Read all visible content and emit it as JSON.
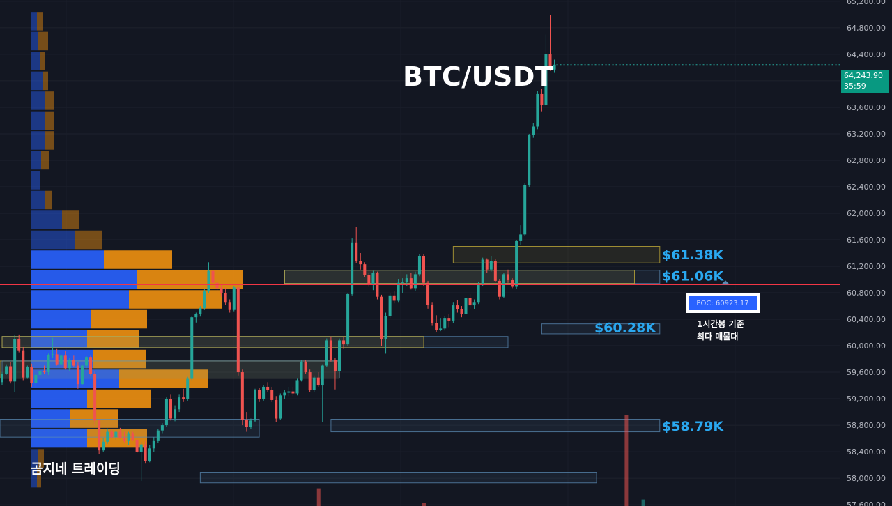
{
  "title": "BTC/USDT",
  "watermark": "곰지네 트레이딩",
  "price_badge": {
    "price": "64,243.90",
    "countdown": "35:59"
  },
  "poc": {
    "label": "POC: 60923.17",
    "value": 60923.17,
    "note_line1": "1시간봉 기준",
    "note_line2": "최다 매물대"
  },
  "colors": {
    "background": "#131722",
    "up": "#26a69a",
    "down": "#ef5350",
    "profile_buy": "#2962ff",
    "profile_sell": "#f0900f",
    "poc_line": "#f23645",
    "zone_yellow": "#c9b33a",
    "zone_blue": "#5b8bb5",
    "accent_label": "#2aa8f0"
  },
  "chart_data": {
    "type": "candlestick",
    "title": "BTC/USDT",
    "timeframe_note": "1시간봉",
    "y_axis": {
      "ticks": [
        "65,200.00",
        "64,800.00",
        "64,400.00",
        "64,000.00",
        "63,600.00",
        "63,200.00",
        "62,800.00",
        "62,400.00",
        "62,000.00",
        "61,600.00",
        "61,200.00",
        "60,800.00",
        "60,400.00",
        "60,000.00",
        "59,600.00",
        "59,200.00",
        "58,800.00",
        "58,400.00",
        "58,000.00",
        "57,600.00"
      ],
      "range": [
        57580,
        65220
      ],
      "grid": true
    },
    "current_price": 64243.9,
    "level_labels": [
      {
        "label": "$61.38K",
        "value": 61380
      },
      {
        "label": "$61.06K",
        "value": 61060
      },
      {
        "label": "$60.28K",
        "value": 60280
      },
      {
        "label": "$58.79K",
        "value": 58790
      }
    ],
    "zones": [
      {
        "top": 61500,
        "bottom": 61250,
        "t0": 107,
        "t1": 156,
        "color": "yellow",
        "labeled": true
      },
      {
        "top": 61140,
        "bottom": 60940,
        "t0": 67,
        "t1": 156,
        "color": "blue",
        "labeled": true
      },
      {
        "top": 61140,
        "bottom": 60940,
        "t0": 67,
        "t1": 150,
        "color": "yellow",
        "labeled": false
      },
      {
        "top": 60330,
        "bottom": 60180,
        "t0": 128,
        "t1": 156,
        "color": "blue",
        "labeled": true
      },
      {
        "top": 60140,
        "bottom": 59970,
        "t0": 0,
        "t1": 120,
        "color": "blue",
        "labeled": false
      },
      {
        "top": 60140,
        "bottom": 59970,
        "t0": 0,
        "t1": 100,
        "color": "yellow",
        "labeled": false
      },
      {
        "top": 59770,
        "bottom": 59510,
        "t0": -10,
        "t1": 80,
        "color": "yellow",
        "labeled": false
      },
      {
        "top": 59770,
        "bottom": 59510,
        "t0": 0,
        "t1": 80,
        "color": "blue",
        "labeled": false
      },
      {
        "top": 58890,
        "bottom": 58620,
        "t0": -10,
        "t1": 61,
        "color": "blue",
        "labeled": false
      },
      {
        "top": 58890,
        "bottom": 58700,
        "t0": 78,
        "t1": 156,
        "color": "blue",
        "labeled": false
      },
      {
        "top": 58090,
        "bottom": 57930,
        "t0": 47,
        "t1": 141,
        "color": "blue",
        "labeled": false
      }
    ],
    "volume_profile": {
      "bucket_size": 300,
      "rows": [
        {
          "price": 64900,
          "buy": 4,
          "sell": 4
        },
        {
          "price": 64600,
          "buy": 5,
          "sell": 7
        },
        {
          "price": 64300,
          "buy": 6,
          "sell": 4
        },
        {
          "price": 64000,
          "buy": 8,
          "sell": 4
        },
        {
          "price": 63700,
          "buy": 10,
          "sell": 6
        },
        {
          "price": 63400,
          "buy": 10,
          "sell": 6
        },
        {
          "price": 63100,
          "buy": 10,
          "sell": 6
        },
        {
          "price": 62800,
          "buy": 7,
          "sell": 6
        },
        {
          "price": 62500,
          "buy": 6,
          "sell": 0
        },
        {
          "price": 62200,
          "buy": 10,
          "sell": 5
        },
        {
          "price": 61900,
          "buy": 22,
          "sell": 12
        },
        {
          "price": 61600,
          "buy": 31,
          "sell": 20
        },
        {
          "price": 61300,
          "buy": 52,
          "sell": 49
        },
        {
          "price": 61000,
          "buy": 76,
          "sell": 76
        },
        {
          "price": 60700,
          "buy": 70,
          "sell": 67
        },
        {
          "price": 60400,
          "buy": 43,
          "sell": 40
        },
        {
          "price": 60100,
          "buy": 40,
          "sell": 37
        },
        {
          "price": 59800,
          "buy": 44,
          "sell": 38
        },
        {
          "price": 59500,
          "buy": 63,
          "sell": 64
        },
        {
          "price": 59200,
          "buy": 40,
          "sell": 46
        },
        {
          "price": 58900,
          "buy": 28,
          "sell": 34
        },
        {
          "price": 58600,
          "buy": 40,
          "sell": 43
        },
        {
          "price": 58300,
          "buy": 5,
          "sell": 4
        },
        {
          "price": 58000,
          "buy": 4,
          "sell": 3
        }
      ]
    },
    "volume_bars": [
      {
        "t": 75,
        "height_ratio": 0.035,
        "dir": "down"
      },
      {
        "t": 100,
        "height_ratio": 0.006,
        "dir": "down"
      },
      {
        "t": 148,
        "height_ratio": 0.18,
        "dir": "down"
      },
      {
        "t": 152,
        "height_ratio": 0.013,
        "dir": "up"
      }
    ],
    "candles": [
      [
        59200,
        59250,
        59170,
        59220
      ],
      [
        59220,
        59330,
        59210,
        59310
      ],
      [
        59310,
        59380,
        59260,
        59260
      ],
      [
        59260,
        59500,
        59240,
        59480
      ],
      [
        59480,
        59600,
        59440,
        59590
      ],
      [
        59590,
        59680,
        59540,
        59560
      ],
      [
        59560,
        59650,
        59520,
        59620
      ],
      [
        59620,
        59700,
        59580,
        59660
      ],
      [
        59660,
        59680,
        59490,
        59510
      ],
      [
        59510,
        59560,
        59440,
        59550
      ],
      [
        59550,
        59580,
        59380,
        59420
      ],
      [
        59420,
        59520,
        59400,
        59500
      ],
      [
        59500,
        59530,
        59440,
        59450
      ],
      [
        59450,
        59600,
        59400,
        59580
      ],
      [
        59580,
        59720,
        59560,
        59690
      ],
      [
        59690,
        59750,
        59430,
        59460
      ],
      [
        59460,
        60160,
        59300,
        60100
      ],
      [
        60100,
        60170,
        59900,
        59930
      ],
      [
        59930,
        59980,
        59480,
        59520
      ],
      [
        59520,
        59700,
        59500,
        59680
      ],
      [
        59680,
        59730,
        59380,
        59440
      ],
      [
        59440,
        59600,
        59370,
        59560
      ],
      [
        59560,
        59660,
        59530,
        59620
      ],
      [
        59620,
        59700,
        59580,
        59600
      ],
      [
        59600,
        59880,
        59560,
        59860
      ],
      [
        59860,
        60120,
        59820,
        59870
      ],
      [
        59870,
        59950,
        59700,
        59720
      ],
      [
        59720,
        59870,
        59680,
        59850
      ],
      [
        59850,
        59920,
        59640,
        59660
      ],
      [
        59660,
        59820,
        59620,
        59780
      ],
      [
        59780,
        59850,
        59680,
        59700
      ],
      [
        59700,
        59750,
        59350,
        59420
      ],
      [
        59420,
        59720,
        59400,
        59700
      ],
      [
        59700,
        59840,
        59660,
        59830
      ],
      [
        59830,
        59850,
        59550,
        59570
      ],
      [
        59570,
        59610,
        58800,
        58870
      ],
      [
        58870,
        58880,
        58360,
        58420
      ],
      [
        58420,
        58600,
        58400,
        58550
      ],
      [
        58550,
        58750,
        58520,
        58700
      ],
      [
        58700,
        58730,
        58600,
        58620
      ],
      [
        58620,
        58720,
        58580,
        58700
      ],
      [
        58700,
        58760,
        58600,
        58610
      ],
      [
        58610,
        58700,
        58540,
        58560
      ],
      [
        58560,
        58700,
        58500,
        58680
      ],
      [
        58680,
        58700,
        58560,
        58580
      ],
      [
        58580,
        58620,
        58380,
        58400
      ],
      [
        58400,
        58550,
        57960,
        58510
      ],
      [
        58510,
        58560,
        58220,
        58260
      ],
      [
        58260,
        58500,
        58240,
        58450
      ],
      [
        58450,
        58620,
        58400,
        58560
      ],
      [
        58560,
        58740,
        58530,
        58720
      ],
      [
        58720,
        58830,
        58680,
        58800
      ],
      [
        58800,
        59220,
        58780,
        59200
      ],
      [
        59200,
        59260,
        58870,
        58900
      ],
      [
        58900,
        59100,
        58860,
        59040
      ],
      [
        59040,
        59260,
        59000,
        59220
      ],
      [
        59220,
        59350,
        59150,
        59190
      ],
      [
        59190,
        59530,
        59170,
        59500
      ],
      [
        59500,
        60450,
        59480,
        60430
      ],
      [
        60430,
        60500,
        60350,
        60480
      ],
      [
        60480,
        60600,
        60440,
        60570
      ],
      [
        60570,
        60860,
        60540,
        60820
      ],
      [
        60820,
        61260,
        60800,
        61130
      ],
      [
        61130,
        61230,
        60930,
        60950
      ],
      [
        60950,
        61000,
        60800,
        60870
      ],
      [
        60870,
        60930,
        60740,
        60800
      ],
      [
        60800,
        60880,
        60620,
        60650
      ],
      [
        60650,
        60700,
        60500,
        60540
      ],
      [
        60540,
        60900,
        60520,
        60880
      ],
      [
        60880,
        60900,
        59550,
        59600
      ],
      [
        59600,
        59640,
        58800,
        58880
      ],
      [
        58880,
        59000,
        58700,
        58770
      ],
      [
        58770,
        58900,
        58740,
        58870
      ],
      [
        58870,
        59350,
        58850,
        59330
      ],
      [
        59330,
        59360,
        59150,
        59190
      ],
      [
        59190,
        59400,
        59170,
        59380
      ],
      [
        59380,
        59450,
        59300,
        59330
      ],
      [
        59330,
        59380,
        59150,
        59180
      ],
      [
        59180,
        59240,
        58850,
        58900
      ],
      [
        58900,
        59280,
        58880,
        59250
      ],
      [
        59250,
        59330,
        59200,
        59290
      ],
      [
        59290,
        59380,
        59240,
        59310
      ],
      [
        59310,
        59380,
        59240,
        59280
      ],
      [
        59280,
        59500,
        59250,
        59480
      ],
      [
        59480,
        59780,
        59460,
        59760
      ],
      [
        59760,
        59790,
        59580,
        59600
      ],
      [
        59600,
        59640,
        59300,
        59330
      ],
      [
        59330,
        59550,
        59300,
        59520
      ],
      [
        59520,
        59600,
        59380,
        59400
      ],
      [
        59400,
        59720,
        58850,
        59700
      ],
      [
        59700,
        60110,
        59680,
        60080
      ],
      [
        60080,
        60140,
        59760,
        59780
      ],
      [
        59780,
        59820,
        59340,
        59620
      ],
      [
        59620,
        60110,
        59600,
        60080
      ],
      [
        60080,
        60140,
        59950,
        60020
      ],
      [
        60020,
        60800,
        60000,
        60780
      ],
      [
        60780,
        61620,
        60760,
        61560
      ],
      [
        61560,
        61800,
        61250,
        61280
      ],
      [
        61280,
        61400,
        61150,
        61230
      ],
      [
        61230,
        61260,
        61040,
        61070
      ],
      [
        61070,
        61100,
        60890,
        60920
      ],
      [
        60920,
        61130,
        60840,
        61100
      ],
      [
        61100,
        61120,
        60700,
        60740
      ],
      [
        60740,
        60770,
        60000,
        60100
      ],
      [
        60100,
        60500,
        59880,
        60450
      ],
      [
        60450,
        60800,
        60420,
        60760
      ],
      [
        60760,
        60830,
        60640,
        60680
      ],
      [
        60680,
        61000,
        60650,
        60950
      ],
      [
        60950,
        61020,
        60800,
        60960
      ],
      [
        60960,
        61080,
        60900,
        61020
      ],
      [
        61020,
        61100,
        60850,
        60870
      ],
      [
        60870,
        61120,
        60830,
        61080
      ],
      [
        61080,
        61380,
        61050,
        61350
      ],
      [
        61350,
        61380,
        60900,
        60950
      ],
      [
        60950,
        60980,
        60560,
        60620
      ],
      [
        60620,
        60650,
        60300,
        60340
      ],
      [
        60340,
        60460,
        60200,
        60240
      ],
      [
        60240,
        60420,
        60220,
        60260
      ],
      [
        60260,
        60450,
        60230,
        60420
      ],
      [
        60420,
        60480,
        60280,
        60380
      ],
      [
        60380,
        60650,
        60340,
        60610
      ],
      [
        60610,
        60690,
        60500,
        60550
      ],
      [
        60550,
        60600,
        60430,
        60480
      ],
      [
        60480,
        60750,
        60460,
        60720
      ],
      [
        60720,
        60780,
        60560,
        60610
      ],
      [
        60610,
        60700,
        60550,
        60650
      ],
      [
        60650,
        60960,
        60630,
        60930
      ],
      [
        60930,
        61330,
        60900,
        61300
      ],
      [
        61300,
        61320,
        61100,
        61150
      ],
      [
        61150,
        61350,
        61120,
        61280
      ],
      [
        61280,
        61310,
        60960,
        60980
      ],
      [
        60980,
        61000,
        60700,
        60740
      ],
      [
        60740,
        61100,
        60720,
        61080
      ],
      [
        61080,
        61150,
        60950,
        60990
      ],
      [
        60990,
        61020,
        60870,
        60890
      ],
      [
        60890,
        61600,
        60860,
        61580
      ],
      [
        61580,
        61820,
        61520,
        61680
      ],
      [
        61680,
        62450,
        61660,
        62430
      ],
      [
        62430,
        63200,
        62400,
        63180
      ],
      [
        63180,
        63360,
        63140,
        63310
      ],
      [
        63310,
        63850,
        63270,
        63800
      ],
      [
        63800,
        63880,
        63540,
        63640
      ],
      [
        63640,
        64700,
        63620,
        64400
      ],
      [
        64400,
        64990,
        64150,
        64170
      ],
      [
        64170,
        64320,
        64120,
        64244
      ]
    ],
    "candle_t0": -13
  }
}
